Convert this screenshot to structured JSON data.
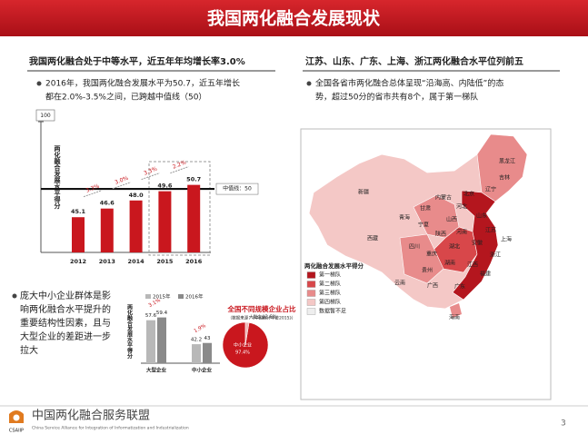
{
  "header": {
    "title": "我国两化融合发展现状"
  },
  "left": {
    "heading": "我国两化融合处于中等水平，近五年年均增长率3.0%",
    "bullet_lines": [
      "2016年，我国两化融合发展水平为50.7，近五年增长",
      "都在2.0%-3.5%之间，已跨越中值线（50）"
    ],
    "bullet2_lines": [
      "庞大中小企业群体是影",
      "响两化融合水平提升的",
      "重要结构性因素，且与",
      "大型企业的差距进一步",
      "拉大"
    ]
  },
  "right": {
    "heading": "江苏、山东、广东、上海、浙江两化融合水平位列前五",
    "bullet_lines": [
      "全国各省市两化融合总体呈现“沿海高、内陆低”的态",
      "势，超过50分的省市共有8个，属于第一梯队"
    ]
  },
  "map": {
    "legend_title": "两化融合发展水平得分",
    "legend": [
      {
        "label": "第一梯队",
        "color": "#b4161e"
      },
      {
        "label": "第二梯队",
        "color": "#d8474a"
      },
      {
        "label": "第三梯队",
        "color": "#e88b8b"
      },
      {
        "label": "第四梯队",
        "color": "#f4c8c6"
      },
      {
        "label": "数据暂不足",
        "color": "#eeeeee"
      }
    ],
    "provinces": [
      "新疆",
      "西藏",
      "青海",
      "甘肃",
      "内蒙古",
      "黑龙江",
      "吉林",
      "辽宁",
      "北京",
      "河北",
      "山西",
      "山东",
      "宁夏",
      "陕西",
      "河南",
      "江苏",
      "安徽",
      "上海",
      "四川",
      "重庆",
      "湖北",
      "浙江",
      "湖南",
      "江西",
      "贵州",
      "福建",
      "云南",
      "广西",
      "广东",
      "海南"
    ]
  },
  "chart_data": [
    {
      "type": "bar",
      "categories": [
        "2012",
        "2013",
        "2014",
        "2015",
        "2016"
      ],
      "values": [
        45.1,
        46.6,
        48.0,
        49.6,
        50.7
      ],
      "value_labels": [
        "45.1",
        "46.6",
        "48.0",
        "49.6",
        "50.7"
      ],
      "color": "#c9171e",
      "ylim": [
        39,
        53
      ],
      "axis_top": 100,
      "y_label": "两化融合发展水平得分",
      "reference_line": {
        "value": 50,
        "label": "中值线：50"
      },
      "growth_labels": [
        "3.3%",
        "3.0%",
        "3.3%",
        "2.2%"
      ]
    },
    {
      "type": "grouped_bar",
      "categories": [
        "大型企业",
        "中小企业"
      ],
      "ylim": [
        30,
        65
      ],
      "y_label": "两化融合发展水平得分",
      "series": [
        {
          "name": "2015年",
          "color": "#b8b8b8",
          "values": [
            57.6,
            42.2
          ]
        },
        {
          "name": "2016年",
          "color": "#8a8a8a",
          "values": [
            59.4,
            43.0
          ]
        }
      ],
      "growth_labels": [
        "3.1%",
        "1.9%"
      ]
    },
    {
      "type": "pie",
      "title": "全国不同规模企业占比",
      "subtitle": "（数据来源：《中国统计年鉴2015》）",
      "categories": [
        "中小企业",
        "大型企业"
      ],
      "values": [
        97.4,
        2.6
      ],
      "value_labels": [
        "97.4%",
        "2.6%"
      ],
      "colors": [
        "#c9171e",
        "#f0b8b8"
      ]
    }
  ],
  "footer": {
    "org": "中国两化融合服务联盟",
    "org_en": "China Service Alliance for Integration of Informatization and Industrialization",
    "logo_text": "CSAIIP",
    "page": "3"
  }
}
